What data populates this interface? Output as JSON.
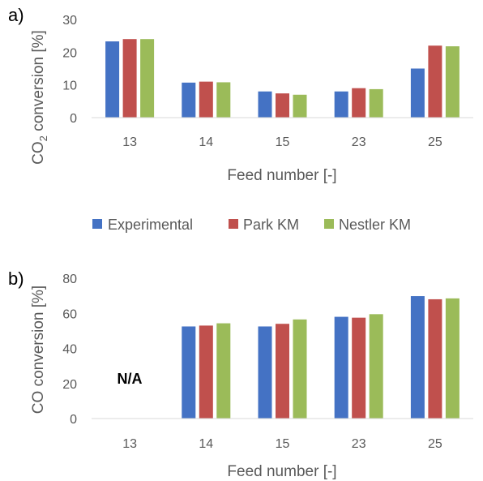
{
  "legend": [
    {
      "name": "Experimental",
      "color": "#4472C4"
    },
    {
      "name": "Park KM",
      "color": "#C0504D"
    },
    {
      "name": "Nestler KM",
      "color": "#9BBB59"
    }
  ],
  "chart_data": [
    {
      "type": "bar",
      "panel_label": "a)",
      "xlabel": "Feed number [-]",
      "ylabel_main": "CO",
      "ylabel_sub": "2",
      "ylabel_rest": " conversion [%]",
      "ylim": [
        0,
        30
      ],
      "yticks": [
        0,
        10,
        20,
        30
      ],
      "grid": false,
      "legend_position": "bottom",
      "categories": [
        "13",
        "14",
        "15",
        "23",
        "25"
      ],
      "series": [
        {
          "name": "Experimental",
          "color": "#4472C4",
          "values": [
            23.3,
            10.7,
            8.0,
            8.0,
            15.0
          ]
        },
        {
          "name": "Park KM",
          "color": "#C0504D",
          "values": [
            24.0,
            11.0,
            7.4,
            9.0,
            22.0
          ]
        },
        {
          "name": "Nestler KM",
          "color": "#9BBB59",
          "values": [
            24.0,
            10.8,
            7.0,
            8.7,
            21.8
          ]
        }
      ]
    },
    {
      "type": "bar",
      "panel_label": "b)",
      "xlabel": "Feed number [-]",
      "ylabel": "CO conversion [%]",
      "ylim": [
        0,
        80
      ],
      "yticks": [
        0,
        20,
        40,
        60,
        80
      ],
      "grid": false,
      "annotation": "N/A",
      "categories": [
        "13",
        "14",
        "15",
        "23",
        "25"
      ],
      "series": [
        {
          "name": "Experimental",
          "color": "#4472C4",
          "values": [
            null,
            52.5,
            52.5,
            58.0,
            69.8
          ]
        },
        {
          "name": "Park KM",
          "color": "#C0504D",
          "values": [
            null,
            53.0,
            54.0,
            57.5,
            68.0
          ]
        },
        {
          "name": "Nestler KM",
          "color": "#9BBB59",
          "values": [
            null,
            54.3,
            56.5,
            59.5,
            68.5
          ]
        }
      ]
    }
  ]
}
